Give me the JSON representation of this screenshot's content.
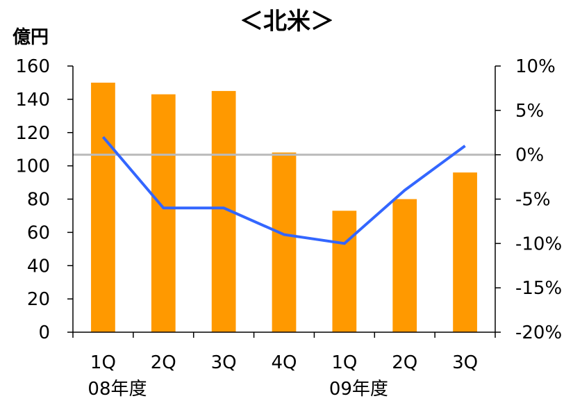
{
  "chart_data": {
    "type": "bar",
    "title": "＜北米＞",
    "y_unit_label": "億円",
    "categories": [
      "1Q",
      "2Q",
      "3Q",
      "4Q",
      "1Q",
      "2Q",
      "3Q"
    ],
    "fiscal_year_labels": [
      {
        "label": "08年度",
        "start_index": 0
      },
      {
        "label": "09年度",
        "start_index": 4
      }
    ],
    "series": [
      {
        "type": "bar",
        "axis": "left",
        "color": "#FF9900",
        "values": [
          150,
          143,
          145,
          108,
          73,
          80,
          96
        ]
      },
      {
        "type": "line",
        "axis": "right",
        "color": "#3366FF",
        "values": [
          2,
          -6,
          -6,
          -9,
          -10,
          -4,
          1
        ]
      }
    ],
    "left_axis": {
      "min": 0,
      "max": 160,
      "step": 20,
      "ticks": [
        "0",
        "20",
        "40",
        "60",
        "80",
        "100",
        "120",
        "140",
        "160"
      ]
    },
    "right_axis": {
      "min": -20,
      "max": 10,
      "step": 5,
      "ticks": [
        "-20%",
        "-15%",
        "-10%",
        "-5%",
        "0%",
        "5%",
        "10%"
      ]
    },
    "reference_line": {
      "axis": "right",
      "value": 0,
      "color": "#BBBBBB"
    },
    "grid": false,
    "legend": "none"
  }
}
